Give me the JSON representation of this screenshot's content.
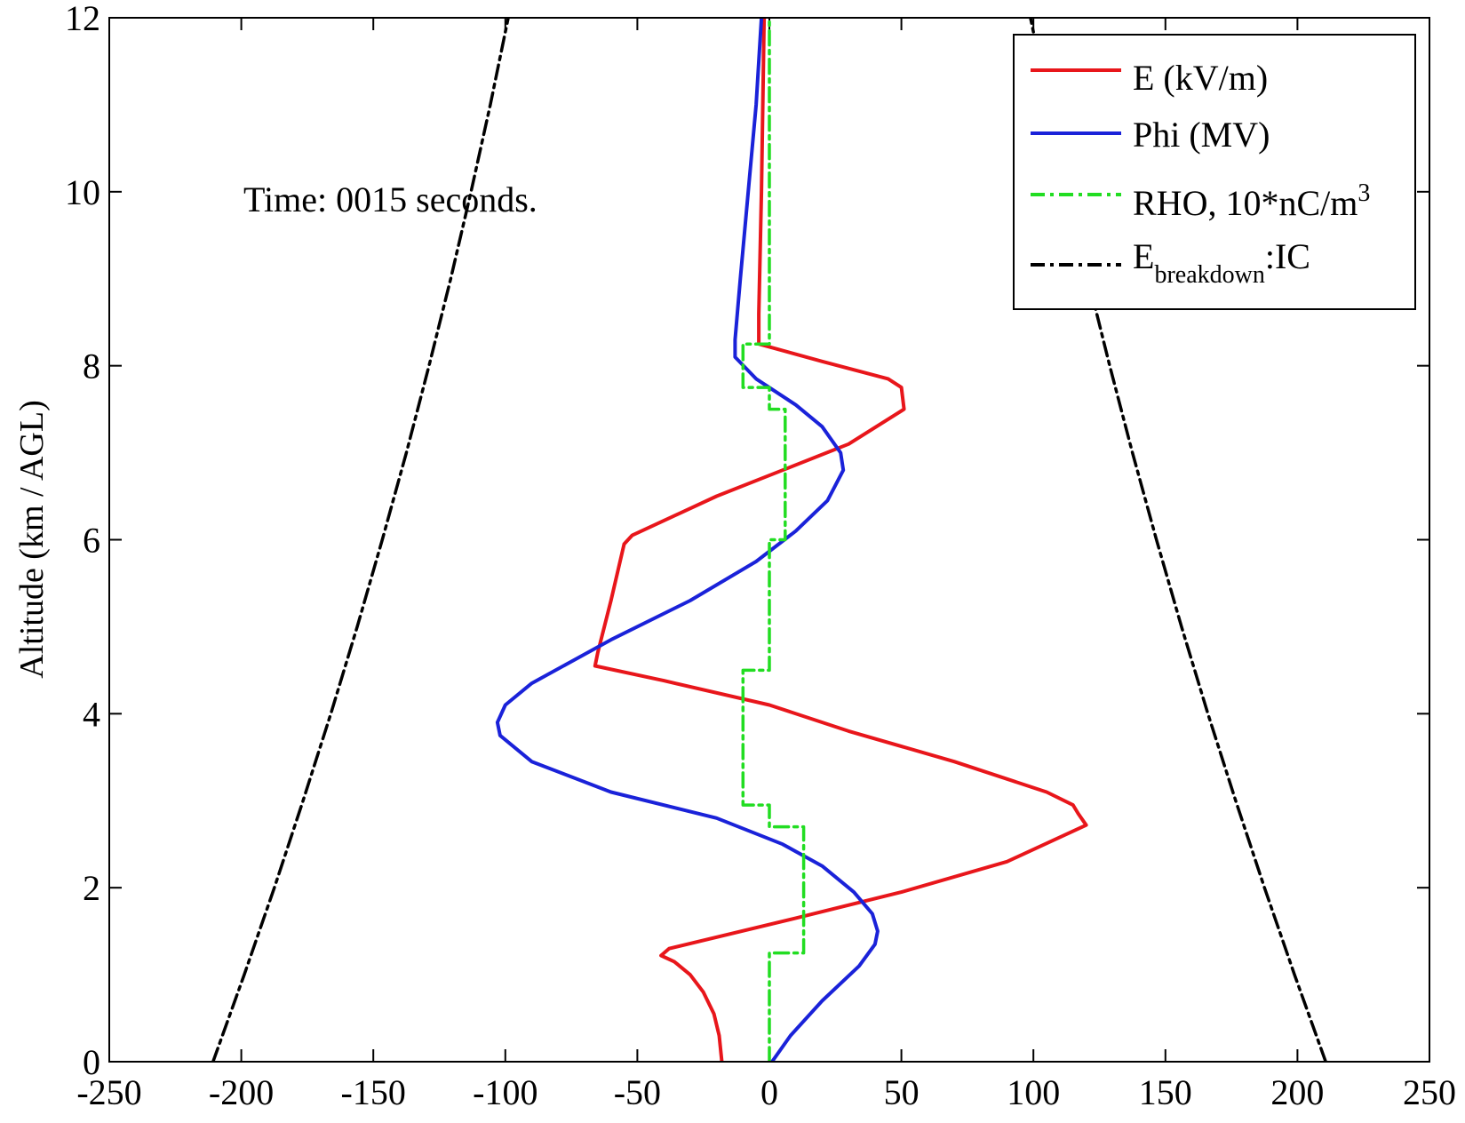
{
  "chart_data": {
    "type": "line",
    "title": "",
    "xlabel": "",
    "ylabel": "Altitude (km / AGL)",
    "xlim": [
      -250,
      250
    ],
    "ylim": [
      0,
      12
    ],
    "x_ticks": [
      -250,
      -200,
      -150,
      -100,
      -50,
      0,
      50,
      100,
      150,
      200,
      250
    ],
    "y_ticks": [
      0,
      2,
      4,
      6,
      8,
      10,
      12
    ],
    "x_tick_labels": [
      "-250",
      "-200",
      "-150",
      "-100",
      "-50",
      "0",
      "50",
      "100",
      "150",
      "200",
      "250"
    ],
    "y_tick_labels": [
      "0",
      "2",
      "4",
      "6",
      "8",
      "10",
      "12"
    ],
    "grid": false,
    "legend_position": "top-right",
    "annotation": "Time: 0015 seconds.",
    "legend": {
      "e": "E (kV/m)",
      "phi": "Phi (MV)",
      "rho_prefix": "RHO, 10*nC/m",
      "rho_sup": "3",
      "eb_main": "E",
      "eb_sub": "breakdown",
      "eb_suffix": ":IC"
    },
    "series": [
      {
        "name": "E (kV/m)",
        "color": "#e8161b",
        "style": "solid",
        "points": [
          [
            -18,
            0.0
          ],
          [
            -19,
            0.3
          ],
          [
            -21,
            0.55
          ],
          [
            -25,
            0.8
          ],
          [
            -30,
            1.0
          ],
          [
            -36,
            1.15
          ],
          [
            -41,
            1.22
          ],
          [
            -38,
            1.3
          ],
          [
            10,
            1.65
          ],
          [
            50,
            1.95
          ],
          [
            90,
            2.3
          ],
          [
            120,
            2.72
          ],
          [
            117,
            2.85
          ],
          [
            115,
            2.95
          ],
          [
            105,
            3.1
          ],
          [
            70,
            3.45
          ],
          [
            30,
            3.8
          ],
          [
            0,
            4.1
          ],
          [
            -40,
            4.38
          ],
          [
            -66,
            4.55
          ],
          [
            -65,
            4.7
          ],
          [
            -60,
            5.3
          ],
          [
            -55,
            5.95
          ],
          [
            -52,
            6.05
          ],
          [
            -20,
            6.5
          ],
          [
            5,
            6.8
          ],
          [
            30,
            7.1
          ],
          [
            51,
            7.5
          ],
          [
            50,
            7.75
          ],
          [
            45,
            7.85
          ],
          [
            20,
            8.05
          ],
          [
            -4,
            8.25
          ],
          [
            -4,
            8.6
          ],
          [
            -3,
            10
          ],
          [
            -2,
            12
          ]
        ]
      },
      {
        "name": "Phi (MV)",
        "color": "#1a22d9",
        "style": "solid",
        "points": [
          [
            1,
            0.0
          ],
          [
            8,
            0.3
          ],
          [
            20,
            0.7
          ],
          [
            34,
            1.1
          ],
          [
            40,
            1.35
          ],
          [
            41,
            1.5
          ],
          [
            39,
            1.7
          ],
          [
            32,
            1.95
          ],
          [
            20,
            2.25
          ],
          [
            5,
            2.5
          ],
          [
            -20,
            2.8
          ],
          [
            -60,
            3.1
          ],
          [
            -90,
            3.45
          ],
          [
            -102,
            3.75
          ],
          [
            -103,
            3.9
          ],
          [
            -100,
            4.1
          ],
          [
            -90,
            4.35
          ],
          [
            -75,
            4.6
          ],
          [
            -60,
            4.85
          ],
          [
            -30,
            5.3
          ],
          [
            -5,
            5.75
          ],
          [
            10,
            6.1
          ],
          [
            22,
            6.45
          ],
          [
            28,
            6.8
          ],
          [
            27,
            7.0
          ],
          [
            20,
            7.3
          ],
          [
            10,
            7.55
          ],
          [
            -5,
            7.85
          ],
          [
            -13,
            8.1
          ],
          [
            -13,
            8.3
          ],
          [
            -11,
            9.0
          ],
          [
            -8,
            10.0
          ],
          [
            -5,
            11.0
          ],
          [
            -3,
            12
          ]
        ]
      },
      {
        "name": "RHO, 10*nC/m3",
        "color": "#22dd22",
        "style": "dashdot",
        "points": [
          [
            0,
            0
          ],
          [
            0,
            1.25
          ],
          [
            13,
            1.25
          ],
          [
            13,
            2.7
          ],
          [
            0,
            2.7
          ],
          [
            0,
            2.95
          ],
          [
            -10,
            2.95
          ],
          [
            -10,
            4.5
          ],
          [
            0,
            4.5
          ],
          [
            0,
            6.0
          ],
          [
            6,
            6.0
          ],
          [
            6,
            7.5
          ],
          [
            0,
            7.5
          ],
          [
            0,
            7.75
          ],
          [
            -10,
            7.75
          ],
          [
            -10,
            8.25
          ],
          [
            0,
            8.25
          ],
          [
            0,
            12
          ]
        ]
      },
      {
        "name": "E_breakdown:IC",
        "color": "#000000",
        "style": "dashdot",
        "points": [
          [
            -210.7,
            0
          ],
          [
            -198.9,
            1
          ],
          [
            -187.5,
            2
          ],
          [
            -176.6,
            3
          ],
          [
            -166.1,
            4
          ],
          [
            -156.1,
            5
          ],
          [
            -146.6,
            6
          ],
          [
            -137.5,
            7
          ],
          [
            -128.9,
            8
          ],
          [
            -120.7,
            9
          ],
          [
            -113.0,
            10
          ],
          [
            -105.7,
            11
          ],
          [
            -98.9,
            12
          ]
        ]
      },
      {
        "name": "E_breakdown:IC",
        "color": "#000000",
        "style": "dashdot",
        "points": [
          [
            210.7,
            0
          ],
          [
            198.9,
            1
          ],
          [
            187.5,
            2
          ],
          [
            176.6,
            3
          ],
          [
            166.1,
            4
          ],
          [
            156.1,
            5
          ],
          [
            146.6,
            6
          ],
          [
            137.5,
            7
          ],
          [
            128.9,
            8
          ],
          [
            120.7,
            9
          ],
          [
            113.0,
            10
          ],
          [
            105.7,
            11
          ],
          [
            98.9,
            12
          ]
        ]
      }
    ]
  }
}
